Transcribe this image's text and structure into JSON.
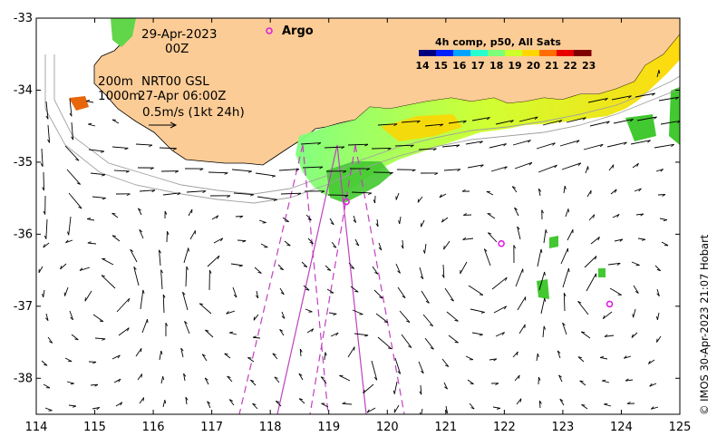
{
  "map": {
    "lon_ticks": [
      "114",
      "115",
      "116",
      "117",
      "118",
      "119",
      "120",
      "121",
      "122",
      "123",
      "124",
      "125"
    ],
    "lat_ticks": [
      "-33",
      "-34",
      "-35",
      "-36",
      "-37",
      "-38"
    ],
    "lon_range": [
      114,
      125
    ],
    "lat_range": [
      -38.5,
      -33
    ]
  },
  "labels": {
    "date": "29-Apr-2023",
    "time": "00Z",
    "depth1": "200m",
    "product": "NRT00 GSL",
    "depth2": "1000m",
    "analysis_time": "27-Apr 06:00Z",
    "scale": "0.5m/s (1kt 24h)",
    "argo": "Argo",
    "credit": "© IMOS 30-Apr-2023 21:07 Hobart"
  },
  "colorbar": {
    "title": "4h comp, p50, All Sats",
    "ticks": [
      "14",
      "15",
      "16",
      "17",
      "18",
      "19",
      "20",
      "21",
      "22",
      "23"
    ],
    "colors": [
      "#00007f",
      "#0020ff",
      "#00a4ff",
      "#28ffce",
      "#7cff79",
      "#ceff28",
      "#ffd700",
      "#ff6d00",
      "#e80000",
      "#7f0000"
    ]
  },
  "colors": {
    "land": "#fccc96",
    "argo": "#e020e0",
    "track": "#c040c0"
  },
  "argo_floats": [
    {
      "lon": 119.3,
      "lat": -35.55
    },
    {
      "lon": 121.95,
      "lat": -36.13
    },
    {
      "lon": 123.8,
      "lat": -36.97
    }
  ]
}
